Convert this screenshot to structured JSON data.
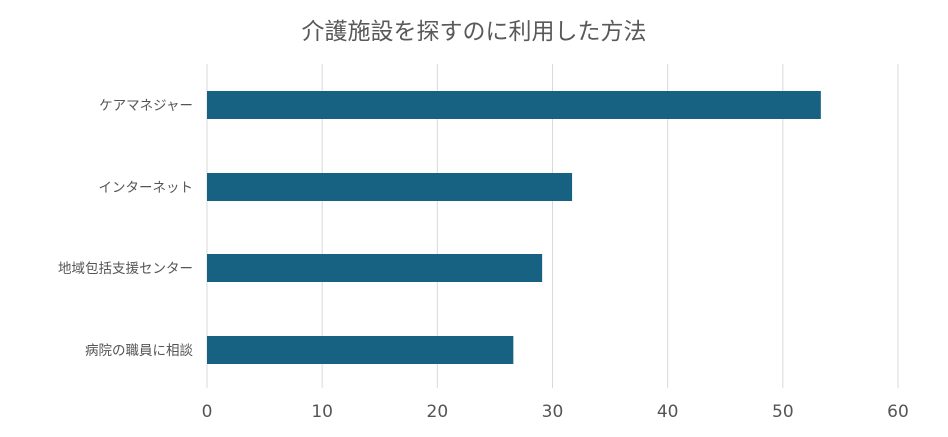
{
  "chart_data": {
    "type": "bar",
    "orientation": "horizontal",
    "title": "介護施設を探すのに利用した方法",
    "categories": [
      "ケアマネジャー",
      "インターネット",
      "地域包括支援センター",
      "病院の職員に相談"
    ],
    "values": [
      53.3,
      31.7,
      29.1,
      26.6
    ],
    "xlim": [
      0,
      60
    ],
    "xticks": [
      0,
      10,
      20,
      30,
      40,
      50,
      60
    ],
    "grid": true,
    "bar_color": "#176283",
    "grid_color": "#d9d9d9",
    "xlabel": "",
    "ylabel": ""
  }
}
